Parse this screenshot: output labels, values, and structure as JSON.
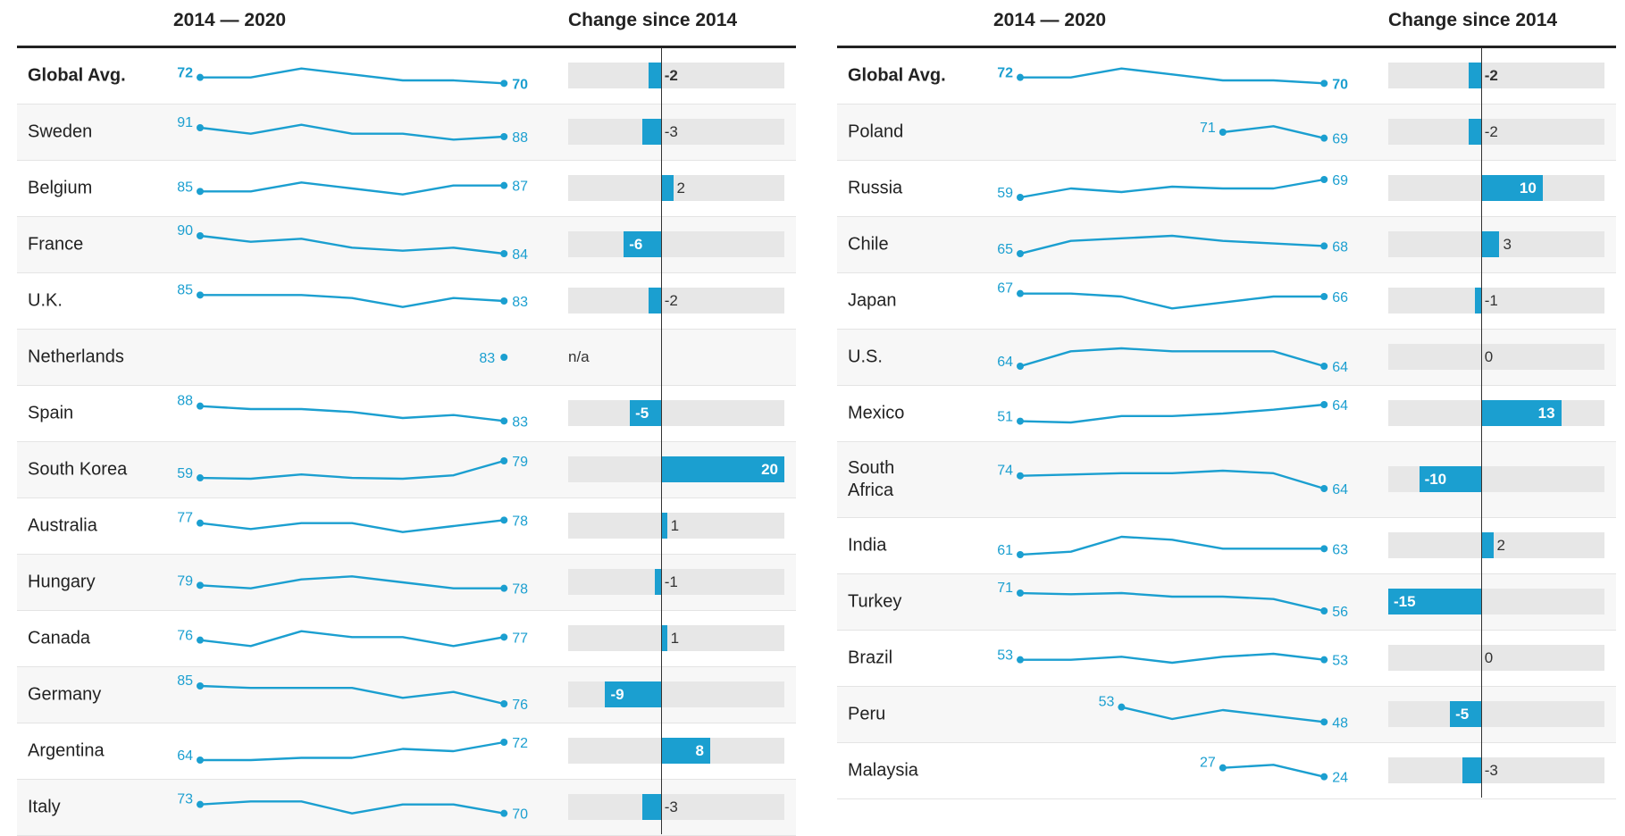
{
  "headers": {
    "trend": "2014 — 2020",
    "change": "Change since 2014"
  },
  "colors": {
    "accent": "#1b9fd0",
    "track": "#e7e7e7",
    "text": "#222222"
  },
  "chart_data": {
    "type": "table",
    "years": [
      2014,
      2015,
      2016,
      2017,
      2018,
      2019,
      2020
    ],
    "change_scale": [
      -15,
      20
    ],
    "panels": [
      {
        "rows": [
          {
            "name": "Global Avg.",
            "values": [
              72,
              72,
              75,
              73,
              71,
              71,
              70
            ],
            "first": "72",
            "last": "70",
            "change": "-2",
            "bold": true
          },
          {
            "name": "Sweden",
            "values": [
              91,
              89,
              92,
              89,
              89,
              87,
              88
            ],
            "first": "91",
            "last": "88",
            "change": "-3"
          },
          {
            "name": "Belgium",
            "values": [
              85,
              85,
              88,
              86,
              84,
              87,
              87
            ],
            "first": "85",
            "last": "87",
            "change": "2"
          },
          {
            "name": "France",
            "values": [
              90,
              88,
              89,
              86,
              85,
              86,
              84
            ],
            "first": "90",
            "last": "84",
            "change": "-6"
          },
          {
            "name": "U.K.",
            "values": [
              85,
              85,
              85,
              84,
              81,
              84,
              83
            ],
            "first": "85",
            "last": "83",
            "change": "-2"
          },
          {
            "name": "Netherlands",
            "values": [
              null,
              null,
              null,
              null,
              null,
              null,
              83
            ],
            "first": "",
            "last": "83",
            "change": "n/a"
          },
          {
            "name": "Spain",
            "values": [
              88,
              87,
              87,
              86,
              84,
              85,
              83
            ],
            "first": "88",
            "last": "83",
            "change": "-5"
          },
          {
            "name": "South Korea",
            "values": [
              59,
              58,
              63,
              59,
              58,
              62,
              79
            ],
            "first": "59",
            "last": "79",
            "change": "20"
          },
          {
            "name": "Australia",
            "values": [
              77,
              75,
              77,
              77,
              74,
              76,
              78
            ],
            "first": "77",
            "last": "78",
            "change": "1"
          },
          {
            "name": "Hungary",
            "values": [
              79,
              78,
              81,
              82,
              80,
              78,
              78
            ],
            "first": "79",
            "last": "78",
            "change": "-1"
          },
          {
            "name": "Canada",
            "values": [
              76,
              74,
              79,
              77,
              77,
              74,
              77
            ],
            "first": "76",
            "last": "77",
            "change": "1"
          },
          {
            "name": "Germany",
            "values": [
              85,
              84,
              84,
              84,
              79,
              82,
              76
            ],
            "first": "85",
            "last": "76",
            "change": "-9"
          },
          {
            "name": "Argentina",
            "values": [
              64,
              64,
              65,
              65,
              69,
              68,
              72
            ],
            "first": "64",
            "last": "72",
            "change": "8"
          },
          {
            "name": "Italy",
            "values": [
              73,
              74,
              74,
              70,
              73,
              73,
              70
            ],
            "first": "73",
            "last": "70",
            "change": "-3"
          }
        ]
      },
      {
        "rows": [
          {
            "name": "Global Avg.",
            "values": [
              72,
              72,
              75,
              73,
              71,
              71,
              70
            ],
            "first": "72",
            "last": "70",
            "change": "-2",
            "bold": true
          },
          {
            "name": "Poland",
            "values": [
              null,
              null,
              null,
              null,
              71,
              73,
              69
            ],
            "first": "71",
            "last": "69",
            "change": "-2"
          },
          {
            "name": "Russia",
            "values": [
              59,
              64,
              62,
              65,
              64,
              64,
              69
            ],
            "first": "59",
            "last": "69",
            "change": "10"
          },
          {
            "name": "Chile",
            "values": [
              65,
              70,
              71,
              72,
              70,
              69,
              68
            ],
            "first": "65",
            "last": "68",
            "change": "3"
          },
          {
            "name": "Japan",
            "values": [
              67,
              67,
              66,
              62,
              64,
              66,
              66
            ],
            "first": "67",
            "last": "66",
            "change": "-1"
          },
          {
            "name": "U.S.",
            "values": [
              64,
              69,
              70,
              69,
              69,
              69,
              64
            ],
            "first": "64",
            "last": "64",
            "change": "0"
          },
          {
            "name": "Mexico",
            "values": [
              51,
              50,
              55,
              55,
              57,
              60,
              64
            ],
            "first": "51",
            "last": "64",
            "change": "13"
          },
          {
            "name": "South Africa",
            "values": [
              74,
              75,
              76,
              76,
              78,
              76,
              64
            ],
            "first": "74",
            "last": "64",
            "change": "-10"
          },
          {
            "name": "India",
            "values": [
              61,
              62,
              67,
              66,
              63,
              63,
              63
            ],
            "first": "61",
            "last": "63",
            "change": "2"
          },
          {
            "name": "Turkey",
            "values": [
              71,
              70,
              71,
              68,
              68,
              66,
              56
            ],
            "first": "71",
            "last": "56",
            "change": "-15"
          },
          {
            "name": "Brazil",
            "values": [
              53,
              53,
              54,
              52,
              54,
              55,
              53
            ],
            "first": "53",
            "last": "53",
            "change": "0"
          },
          {
            "name": "Peru",
            "values": [
              null,
              null,
              53,
              49,
              52,
              50,
              48
            ],
            "first": "53",
            "last": "48",
            "change": "-5"
          },
          {
            "name": "Malaysia",
            "values": [
              null,
              null,
              null,
              null,
              27,
              28,
              24
            ],
            "first": "27",
            "last": "24",
            "change": "-3"
          }
        ]
      }
    ]
  }
}
